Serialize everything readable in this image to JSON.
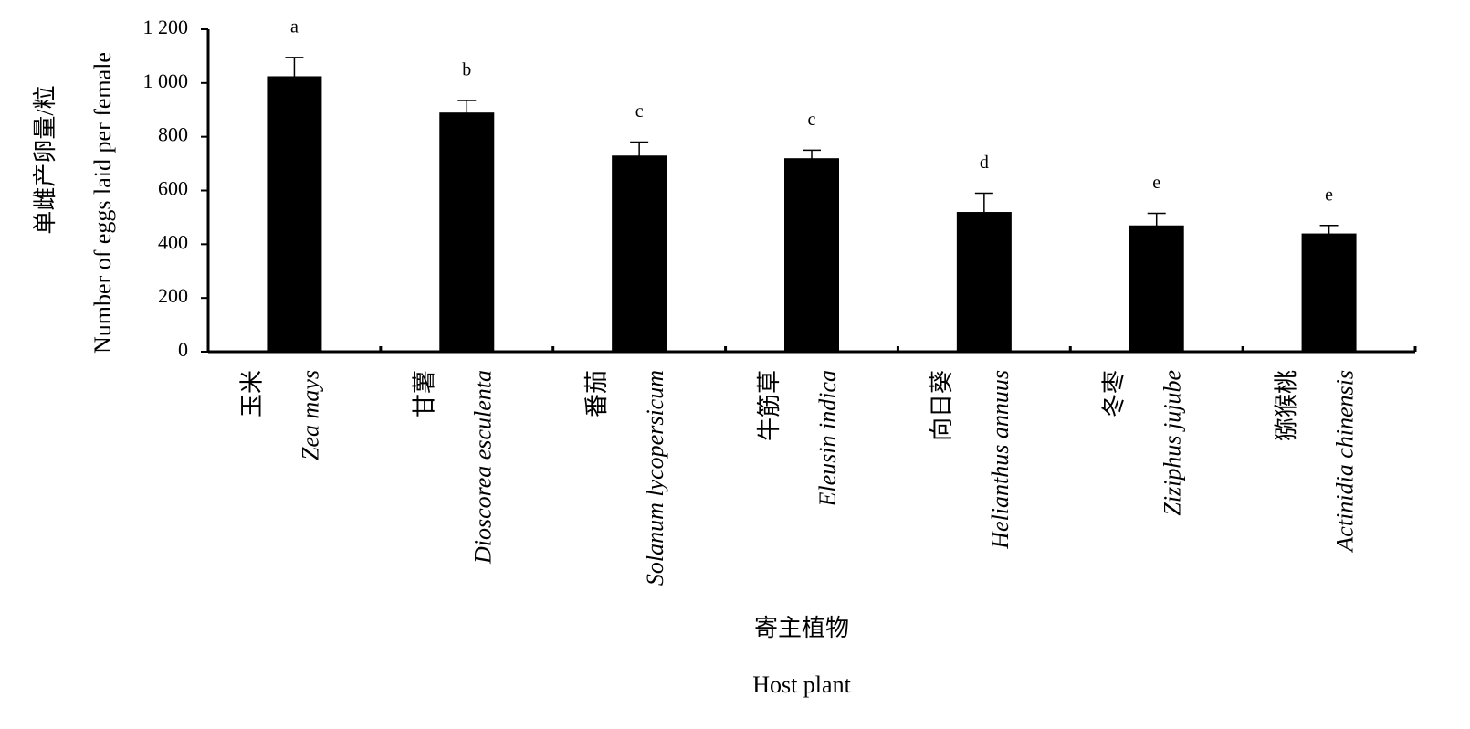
{
  "chart_data": {
    "type": "bar",
    "y_label": "单雌产卵量/粒",
    "y_label_en": "Number of eggs laid per female",
    "x_label": "寄主植物",
    "x_label_en": "Host plant",
    "categories": [
      "玉米",
      "甘薯",
      "番茄",
      "牛筋草",
      "向日葵",
      "冬枣",
      "猕猴桃"
    ],
    "scientific_names": [
      "Zea mays",
      "Dioscorea esculenta",
      "Solanum lycopersicum",
      "Eleusin indica",
      "Helianthus annuus",
      "Ziziphus jujube",
      "Actinidia chinensis"
    ],
    "values": [
      1025,
      890,
      730,
      720,
      520,
      470,
      440
    ],
    "errors": [
      70,
      45,
      50,
      30,
      70,
      45,
      30
    ],
    "significance": [
      "a",
      "b",
      "c",
      "c",
      "d",
      "e",
      "e"
    ],
    "color": "#000000",
    "ylim": [
      0,
      1200
    ],
    "yticks": [
      0,
      200,
      400,
      600,
      800,
      {
        "value": 1000,
        "label": "1 000"
      },
      {
        "value": 1200,
        "label": "1 200"
      }
    ]
  }
}
